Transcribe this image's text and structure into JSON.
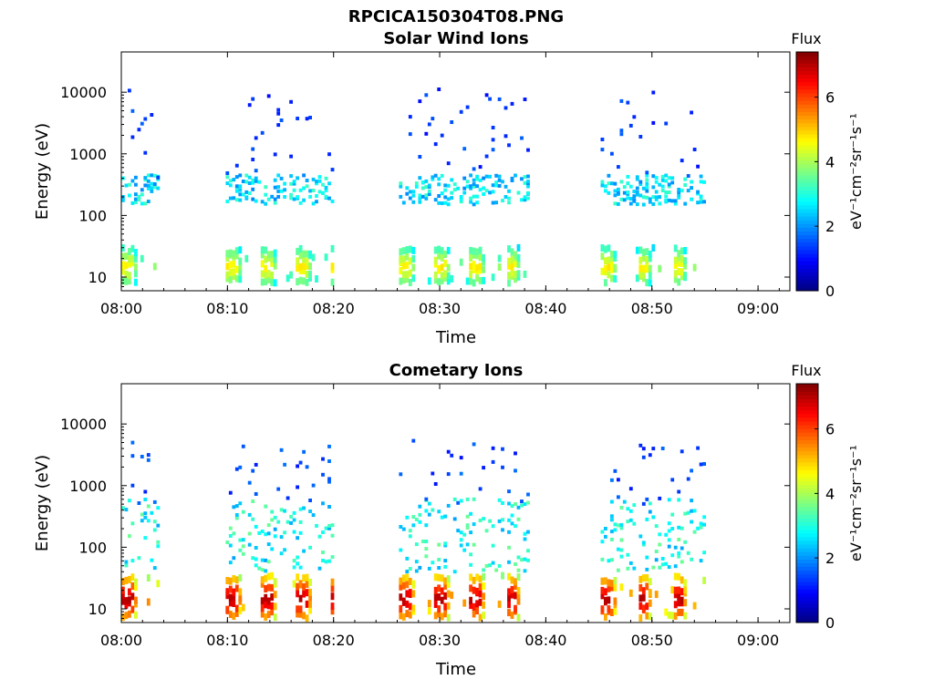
{
  "figure_title": "RPCICA150304T08.PNG",
  "colors": {
    "colormap": [
      "#00007f",
      "#0000ff",
      "#007fff",
      "#00ffff",
      "#7fff7f",
      "#ffff00",
      "#ff7f00",
      "#ff0000",
      "#7f0000"
    ]
  },
  "chart_data": [
    {
      "type": "heatmap",
      "title": "Solar Wind Ions",
      "xlabel": "Time",
      "ylabel": "Energy (eV)",
      "xticks": [
        "08:00",
        "08:10",
        "08:20",
        "08:30",
        "08:40",
        "08:50",
        "09:00"
      ],
      "yticks": [
        "10",
        "100",
        "1000",
        "10000"
      ],
      "xlim": [
        "08:00",
        "09:03"
      ],
      "ylim": [
        6,
        45000
      ],
      "yscale": "log",
      "colorbar": {
        "title": "Flux",
        "label": "eV⁻¹cm⁻²sr⁻¹s⁻¹",
        "range": [
          0,
          7.4
        ],
        "ticks": [
          "0",
          "2",
          "4",
          "6"
        ]
      },
      "bursts": [
        {
          "start": "08:00",
          "end": "08:03:30"
        },
        {
          "start": "08:09:50",
          "end": "08:19:50"
        },
        {
          "start": "08:26:10",
          "end": "08:38:20"
        },
        {
          "start": "08:45:10",
          "end": "08:54:50"
        }
      ],
      "bands": [
        {
          "e_low": 8,
          "e_high": 30,
          "level": 4.4,
          "note": "high-flux low-energy band during bursts"
        },
        {
          "e_low": 150,
          "e_high": 450,
          "level": 2.7,
          "note": "solar wind proton band"
        },
        {
          "e_low": 400,
          "e_high": 12000,
          "level": 1.4,
          "note": "sparse high-energy counts"
        }
      ]
    },
    {
      "type": "heatmap",
      "title": "Cometary Ions",
      "xlabel": "Time",
      "ylabel": "Energy (eV)",
      "xticks": [
        "08:00",
        "08:10",
        "08:20",
        "08:30",
        "08:40",
        "08:50",
        "09:00"
      ],
      "yticks": [
        "10",
        "100",
        "1000",
        "10000"
      ],
      "xlim": [
        "08:00",
        "09:03"
      ],
      "ylim": [
        6,
        45000
      ],
      "yscale": "log",
      "colorbar": {
        "title": "Flux",
        "label": "eV⁻¹cm⁻²sr⁻¹s⁻¹",
        "range": [
          0,
          7.4
        ],
        "ticks": [
          "0",
          "2",
          "4",
          "6"
        ]
      },
      "bursts": [
        {
          "start": "08:00",
          "end": "08:03:30"
        },
        {
          "start": "08:09:50",
          "end": "08:19:50"
        },
        {
          "start": "08:26:10",
          "end": "08:38:20"
        },
        {
          "start": "08:45:10",
          "end": "08:54:50"
        }
      ],
      "bands": [
        {
          "e_low": 7,
          "e_high": 35,
          "level": 6.5,
          "note": "intense cometary ion band"
        },
        {
          "e_low": 40,
          "e_high": 600,
          "level": 3.0,
          "note": "pickup ion band"
        },
        {
          "e_low": 500,
          "e_high": 5500,
          "level": 1.5,
          "note": "rising high-energy traces"
        }
      ]
    }
  ]
}
